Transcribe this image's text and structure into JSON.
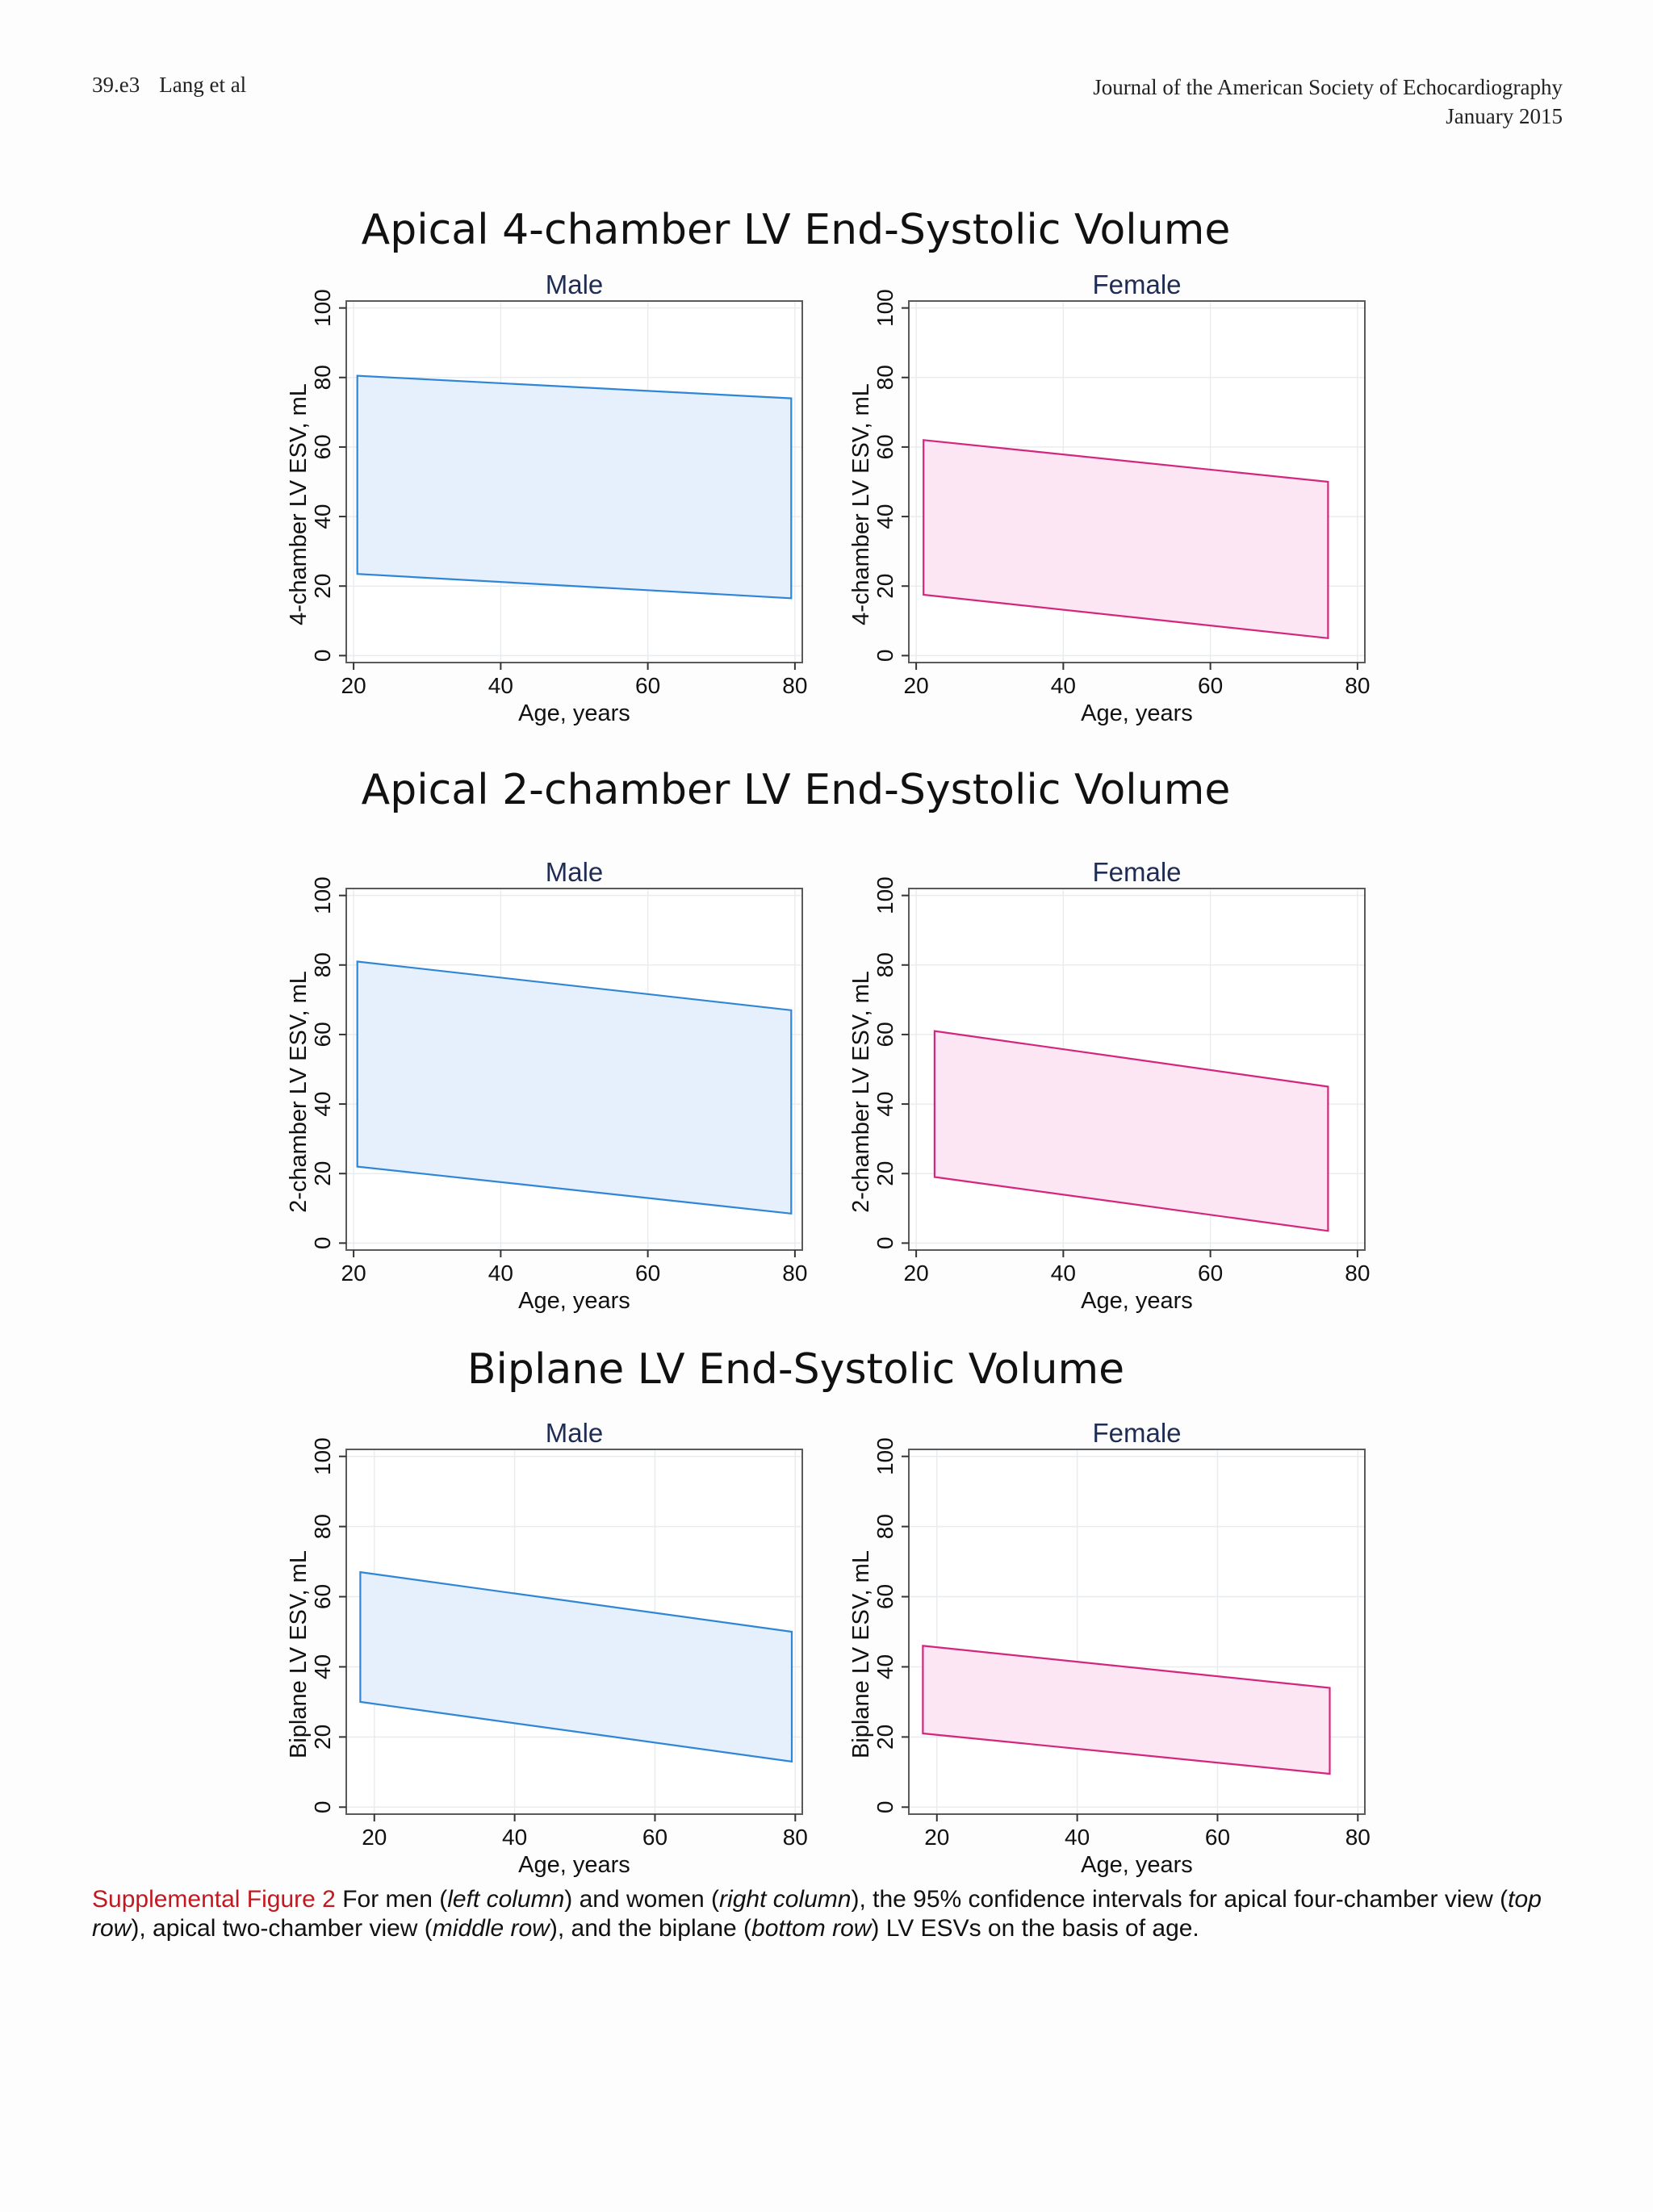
{
  "header": {
    "page_number": "39.e3",
    "authors": "Lang et al",
    "journal": "Journal of the American Society of Echocardiography",
    "issue_date": "January 2015"
  },
  "colors": {
    "male_stroke": "#2f86d6",
    "male_fill": "#e5f0fc",
    "female_stroke": "#d4267e",
    "female_fill": "#fde6f3",
    "panel_title": "#1f2d55",
    "caption_label": "#c01a20",
    "grid": "#e9ecef"
  },
  "chart_data": [
    {
      "type": "area",
      "row_title": "Apical 4-chamber LV End-Systolic Volume",
      "title": "Male",
      "xlabel": "Age, years",
      "ylabel": "4-chamber LV ESV, mL",
      "xlim": [
        19,
        81
      ],
      "ylim": [
        -2,
        102
      ],
      "xticks": [
        20,
        40,
        60,
        80
      ],
      "yticks": [
        0,
        20,
        40,
        60,
        80,
        100
      ],
      "grid": true,
      "band": {
        "x": [
          20.5,
          79.5
        ],
        "upper": [
          80.5,
          74
        ],
        "lower": [
          23.5,
          16.5
        ]
      }
    },
    {
      "type": "area",
      "title": "Female",
      "xlabel": "Age, years",
      "ylabel": "4-chamber LV ESV, mL",
      "xlim": [
        19,
        81
      ],
      "ylim": [
        -2,
        102
      ],
      "xticks": [
        20,
        40,
        60,
        80
      ],
      "yticks": [
        0,
        20,
        40,
        60,
        80,
        100
      ],
      "grid": true,
      "band": {
        "x": [
          21,
          76
        ],
        "upper": [
          62,
          50
        ],
        "lower": [
          17.5,
          5
        ]
      }
    },
    {
      "type": "area",
      "row_title": "Apical 2-chamber LV End-Systolic Volume",
      "title": "Male",
      "xlabel": "Age, years",
      "ylabel": "2-chamber LV ESV, mL",
      "xlim": [
        19,
        81
      ],
      "ylim": [
        -2,
        102
      ],
      "xticks": [
        20,
        40,
        60,
        80
      ],
      "yticks": [
        0,
        20,
        40,
        60,
        80,
        100
      ],
      "grid": true,
      "band": {
        "x": [
          20.5,
          79.5
        ],
        "upper": [
          81,
          67
        ],
        "lower": [
          22,
          8.5
        ]
      }
    },
    {
      "type": "area",
      "title": "Female",
      "xlabel": "Age, years",
      "ylabel": "2-chamber LV ESV, mL",
      "xlim": [
        19,
        81
      ],
      "ylim": [
        -2,
        102
      ],
      "xticks": [
        20,
        40,
        60,
        80
      ],
      "yticks": [
        0,
        20,
        40,
        60,
        80,
        100
      ],
      "grid": true,
      "band": {
        "x": [
          22.5,
          76
        ],
        "upper": [
          61,
          45
        ],
        "lower": [
          19,
          3.5
        ]
      }
    },
    {
      "type": "area",
      "row_title": "Biplane LV End-Systolic Volume",
      "title": "Male",
      "xlabel": "Age, years",
      "ylabel": "Biplane LV ESV, mL",
      "xlim": [
        16,
        81
      ],
      "ylim": [
        -2,
        102
      ],
      "xticks": [
        20,
        40,
        60,
        80
      ],
      "yticks": [
        0,
        20,
        40,
        60,
        80,
        100
      ],
      "grid": true,
      "band": {
        "x": [
          18,
          79.5
        ],
        "upper": [
          67,
          50
        ],
        "lower": [
          30,
          13
        ]
      }
    },
    {
      "type": "area",
      "title": "Female",
      "xlabel": "Age, years",
      "ylabel": "Biplane LV ESV, mL",
      "xlim": [
        16,
        81
      ],
      "ylim": [
        -2,
        102
      ],
      "xticks": [
        20,
        40,
        60,
        80
      ],
      "yticks": [
        0,
        20,
        40,
        60,
        80,
        100
      ],
      "grid": true,
      "band": {
        "x": [
          18,
          76
        ],
        "upper": [
          46,
          34
        ],
        "lower": [
          21,
          9.5
        ]
      }
    }
  ],
  "caption": {
    "label": "Supplemental Figure 2",
    "t1": " For men (",
    "i1": "left column",
    "t2": ") and women (",
    "i2": "right column",
    "t3": "), the 95% confidence intervals for apical four-chamber view (",
    "i3": "top row",
    "t4": "), apical two-chamber view (",
    "i4": "middle row",
    "t5": "), and the biplane (",
    "i5": "bottom row",
    "t6": ") LV ESVs on the basis of age."
  }
}
